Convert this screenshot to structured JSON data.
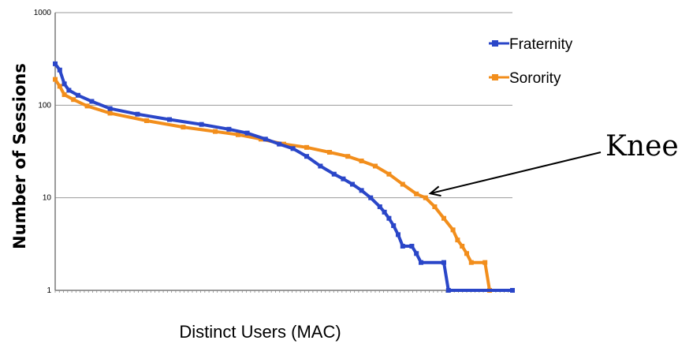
{
  "chart_data": {
    "type": "line",
    "title": "",
    "xlabel": "Distinct Users (MAC)",
    "ylabel": "Number of Sessions",
    "yscale": "log",
    "ylim": [
      1,
      1000
    ],
    "y_ticks": [
      "1",
      "10",
      "100",
      "1000"
    ],
    "xlim": [
      0,
      1
    ],
    "x_ticks_labeled": false,
    "grid": "horizontal",
    "legend_position": "right",
    "series": [
      {
        "name": "Fraternity",
        "color": "#2a46c8",
        "points": [
          [
            0.0,
            280
          ],
          [
            0.01,
            240
          ],
          [
            0.02,
            170
          ],
          [
            0.03,
            145
          ],
          [
            0.05,
            128
          ],
          [
            0.08,
            110
          ],
          [
            0.12,
            92
          ],
          [
            0.18,
            80
          ],
          [
            0.25,
            70
          ],
          [
            0.32,
            62
          ],
          [
            0.38,
            55
          ],
          [
            0.42,
            50
          ],
          [
            0.46,
            43
          ],
          [
            0.49,
            38
          ],
          [
            0.52,
            34
          ],
          [
            0.55,
            28
          ],
          [
            0.58,
            22
          ],
          [
            0.61,
            18
          ],
          [
            0.63,
            16
          ],
          [
            0.65,
            14
          ],
          [
            0.67,
            12
          ],
          [
            0.69,
            10
          ],
          [
            0.71,
            8
          ],
          [
            0.72,
            7
          ],
          [
            0.73,
            6
          ],
          [
            0.74,
            5
          ],
          [
            0.75,
            4
          ],
          [
            0.76,
            3
          ],
          [
            0.78,
            3
          ],
          [
            0.79,
            2.5
          ],
          [
            0.8,
            2
          ],
          [
            0.85,
            2
          ],
          [
            0.86,
            1
          ],
          [
            1.0,
            1
          ]
        ]
      },
      {
        "name": "Sorority",
        "color": "#f28e1c",
        "points": [
          [
            0.0,
            190
          ],
          [
            0.01,
            160
          ],
          [
            0.02,
            130
          ],
          [
            0.04,
            115
          ],
          [
            0.07,
            98
          ],
          [
            0.12,
            82
          ],
          [
            0.2,
            68
          ],
          [
            0.28,
            58
          ],
          [
            0.35,
            52
          ],
          [
            0.4,
            48
          ],
          [
            0.45,
            43
          ],
          [
            0.5,
            38
          ],
          [
            0.55,
            35
          ],
          [
            0.6,
            31
          ],
          [
            0.64,
            28
          ],
          [
            0.67,
            25
          ],
          [
            0.7,
            22
          ],
          [
            0.73,
            18
          ],
          [
            0.76,
            14
          ],
          [
            0.79,
            11
          ],
          [
            0.81,
            10
          ],
          [
            0.83,
            8
          ],
          [
            0.85,
            6
          ],
          [
            0.87,
            4.5
          ],
          [
            0.88,
            3.5
          ],
          [
            0.89,
            3
          ],
          [
            0.9,
            2.5
          ],
          [
            0.91,
            2
          ],
          [
            0.94,
            2
          ],
          [
            0.95,
            1
          ],
          [
            1.0,
            1
          ]
        ]
      }
    ],
    "annotation": {
      "text": "Knee",
      "x": 0.81,
      "y": 10.5,
      "series": "Sorority"
    }
  }
}
